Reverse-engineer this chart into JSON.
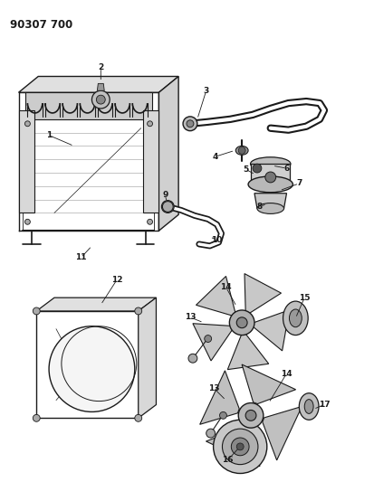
{
  "title": "90307 700",
  "bg_color": "#ffffff",
  "line_color": "#1a1a1a",
  "fig_width": 4.13,
  "fig_height": 5.33,
  "dpi": 100
}
